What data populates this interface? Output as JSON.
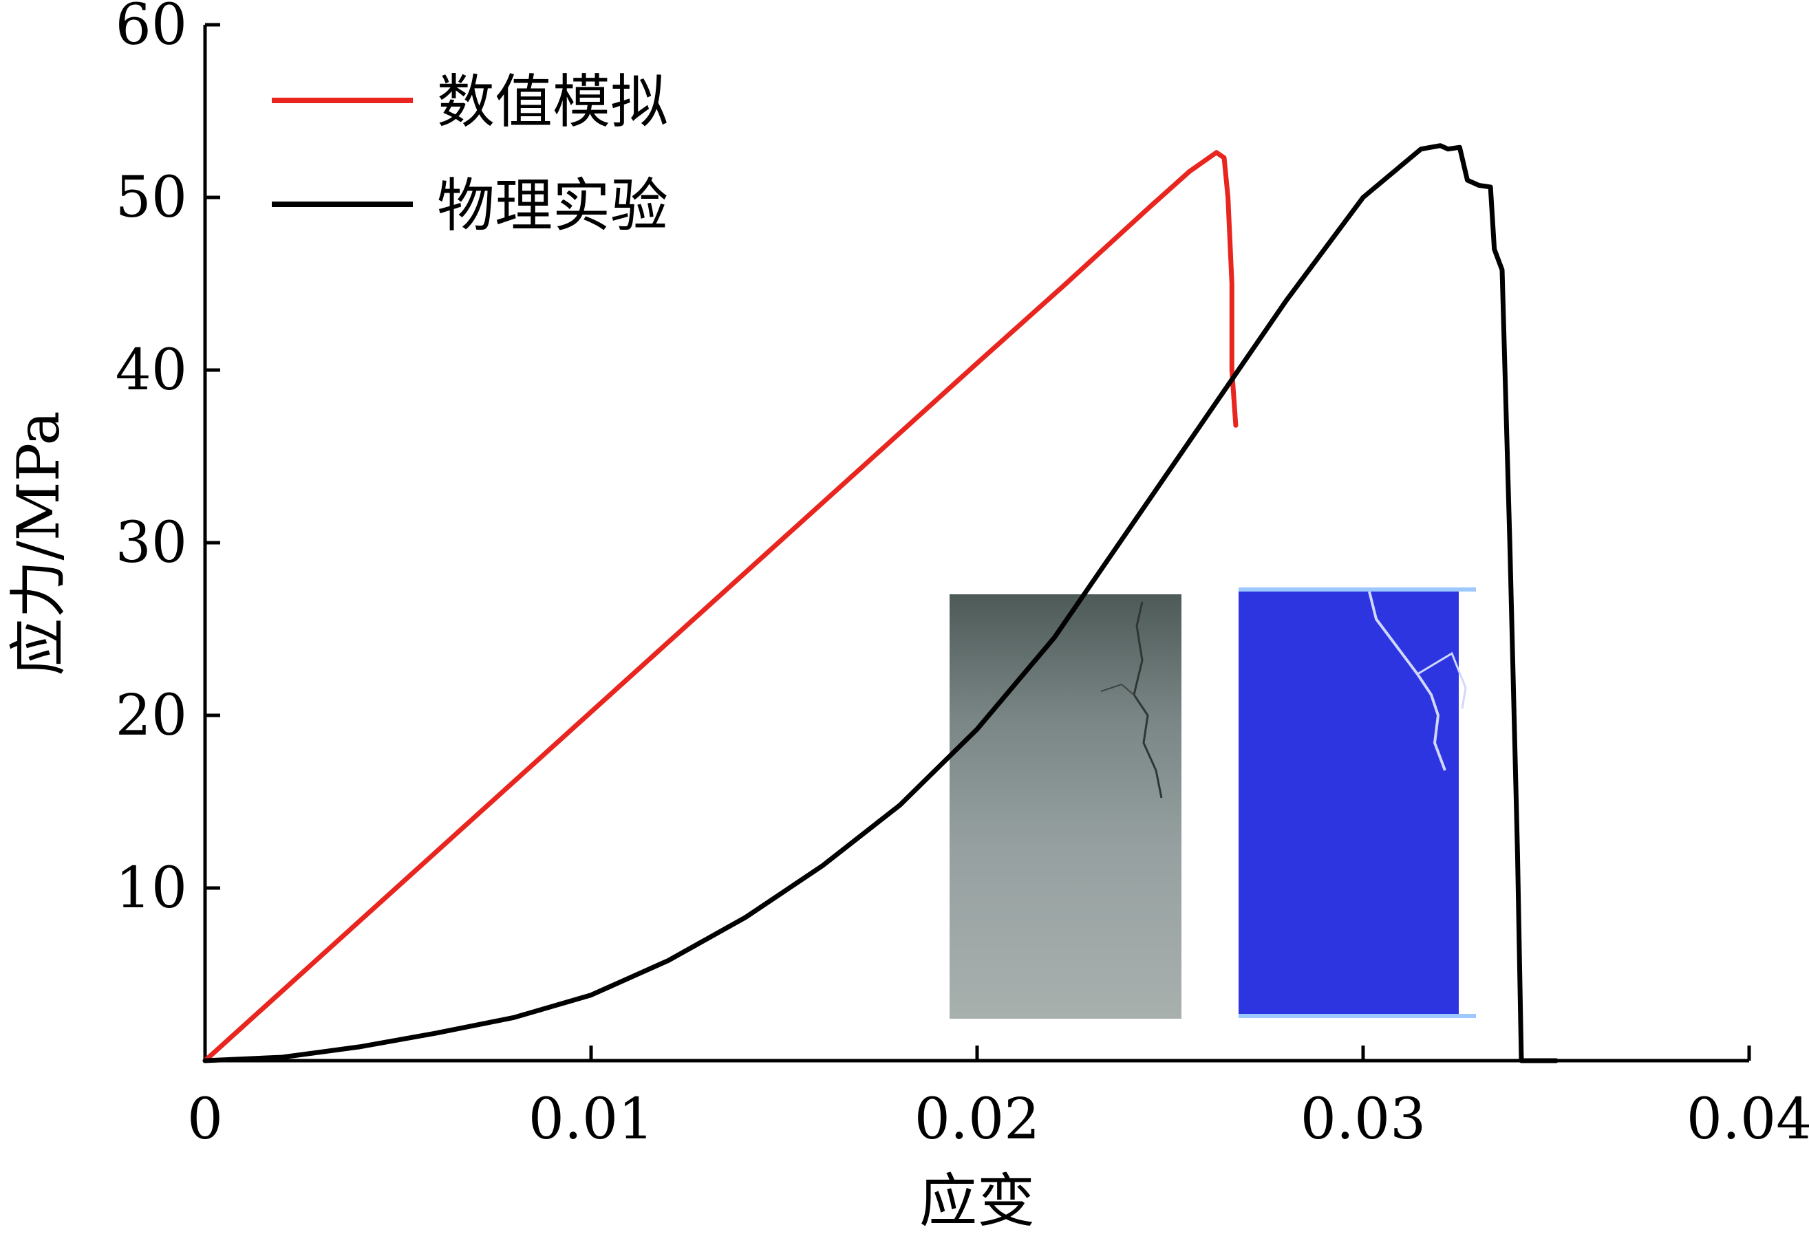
{
  "chart_data": {
    "type": "line",
    "title": "",
    "xlabel": "应变",
    "ylabel": "应力/MPa",
    "xlim": [
      0,
      0.04
    ],
    "ylim": [
      0,
      60
    ],
    "x_ticks": [
      0,
      0.01,
      0.02,
      0.03,
      0.04
    ],
    "x_tick_labels": [
      "0",
      "0.01",
      "0.02",
      "0.03",
      "0.04"
    ],
    "y_ticks": [
      10,
      20,
      30,
      40,
      50,
      60
    ],
    "y_tick_labels": [
      "10",
      "20",
      "30",
      "40",
      "50",
      "60"
    ],
    "grid": false,
    "legend_position": "top-left",
    "series": [
      {
        "name": "数值模拟",
        "color": "#e8251e",
        "points": [
          [
            0,
            0
          ],
          [
            0.005,
            10.1
          ],
          [
            0.01,
            20.2
          ],
          [
            0.015,
            30.3
          ],
          [
            0.02,
            40.4
          ],
          [
            0.0223,
            45.0
          ],
          [
            0.0245,
            49.5
          ],
          [
            0.0255,
            51.5
          ],
          [
            0.0262,
            52.6
          ],
          [
            0.0264,
            52.3
          ],
          [
            0.0265,
            50.0
          ],
          [
            0.0266,
            45.0
          ],
          [
            0.0266,
            40.0
          ],
          [
            0.0267,
            36.8
          ]
        ]
      },
      {
        "name": "物理实验",
        "color": "#000000",
        "points": [
          [
            0,
            0
          ],
          [
            0.002,
            0.2
          ],
          [
            0.004,
            0.8
          ],
          [
            0.006,
            1.6
          ],
          [
            0.008,
            2.5
          ],
          [
            0.01,
            3.8
          ],
          [
            0.012,
            5.8
          ],
          [
            0.014,
            8.3
          ],
          [
            0.016,
            11.3
          ],
          [
            0.018,
            14.8
          ],
          [
            0.02,
            19.2
          ],
          [
            0.022,
            24.5
          ],
          [
            0.024,
            31.0
          ],
          [
            0.026,
            37.5
          ],
          [
            0.028,
            44.0
          ],
          [
            0.03,
            50.0
          ],
          [
            0.0315,
            52.8
          ],
          [
            0.032,
            53.0
          ],
          [
            0.0322,
            52.8
          ],
          [
            0.0325,
            52.9
          ],
          [
            0.0327,
            51.0
          ],
          [
            0.033,
            50.7
          ],
          [
            0.0333,
            50.6
          ],
          [
            0.0334,
            47.0
          ],
          [
            0.0336,
            45.8
          ],
          [
            0.0338,
            30.0
          ],
          [
            0.034,
            12.0
          ],
          [
            0.0341,
            0
          ],
          [
            0.035,
            0
          ]
        ]
      }
    ],
    "inset_images": [
      {
        "name": "physical-specimen-photo",
        "color": "#8c9898"
      },
      {
        "name": "numerical-specimen-model",
        "color": "#2c35e0"
      }
    ]
  }
}
